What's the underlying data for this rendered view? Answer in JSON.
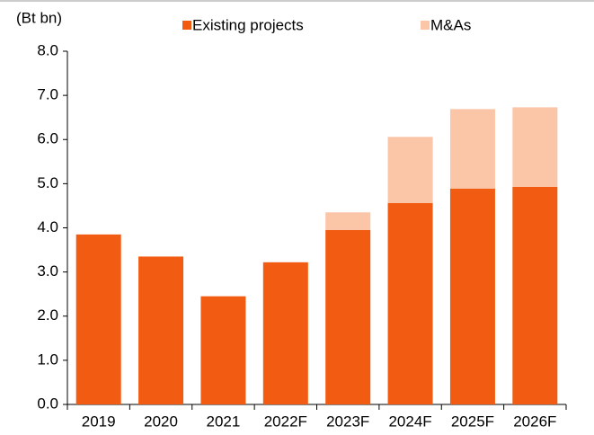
{
  "chart_data": {
    "type": "stacked_bar",
    "y_axis_label": "(Bt bn)",
    "categories": [
      "2019",
      "2020",
      "2021",
      "2022F",
      "2023F",
      "2024F",
      "2025F",
      "2026F"
    ],
    "series": [
      {
        "name": "Existing projects",
        "color": "#f25c12",
        "values": [
          3.85,
          3.35,
          2.45,
          3.22,
          3.95,
          4.56,
          4.89,
          4.93
        ]
      },
      {
        "name": "M&As",
        "color": "#fbc5a8",
        "values": [
          null,
          null,
          null,
          null,
          0.4,
          1.5,
          1.8,
          1.8
        ]
      }
    ],
    "ylim": [
      0,
      8
    ],
    "yticks": [
      {
        "value": 0,
        "label": "0.0"
      },
      {
        "value": 1,
        "label": "1.0"
      },
      {
        "value": 2,
        "label": "2.0"
      },
      {
        "value": 3,
        "label": "3.0"
      },
      {
        "value": 4,
        "label": "4.0"
      },
      {
        "value": 5,
        "label": "5.0"
      },
      {
        "value": 6,
        "label": "6.0"
      },
      {
        "value": 7,
        "label": "7.0"
      },
      {
        "value": 8,
        "label": "8.0"
      }
    ],
    "legend": "top",
    "grid": false
  }
}
